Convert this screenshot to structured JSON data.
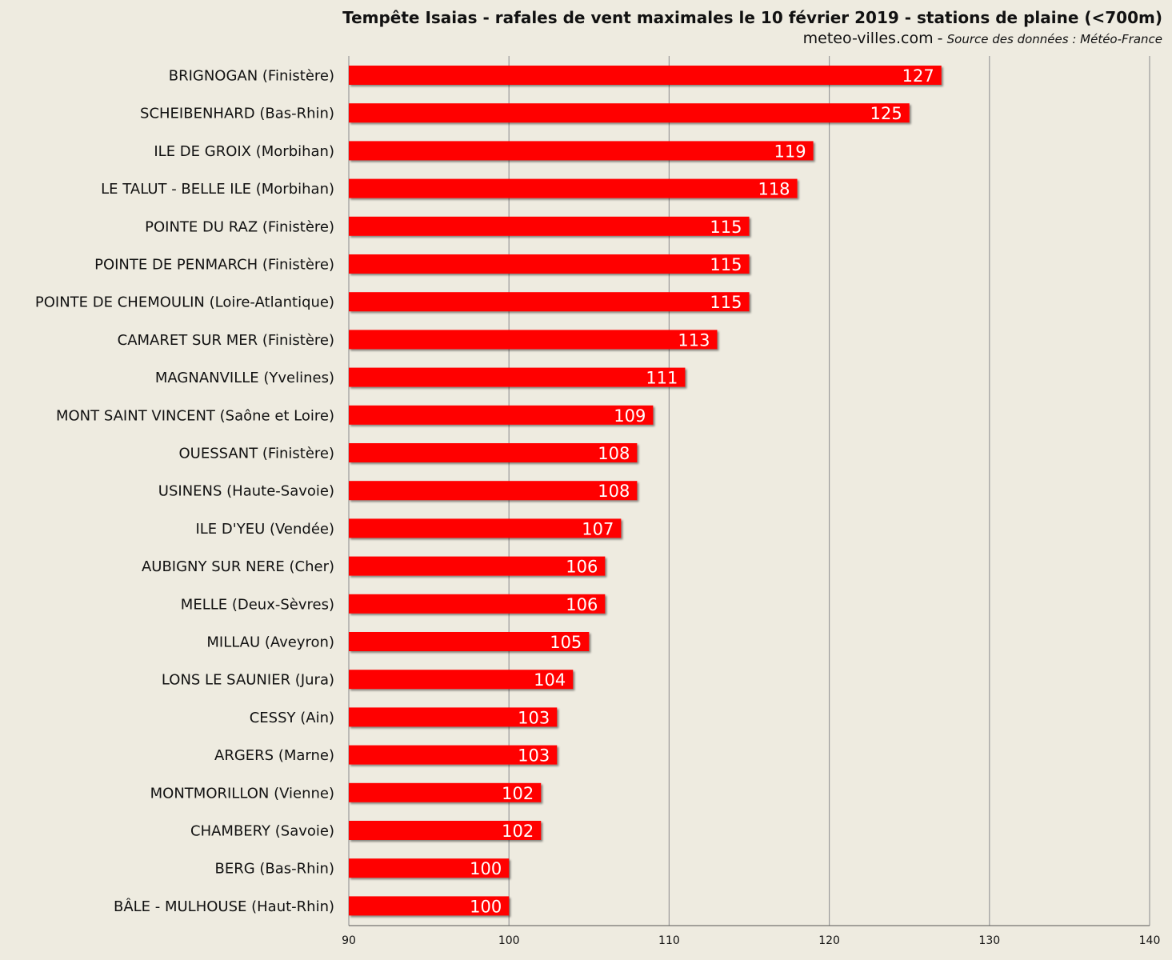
{
  "header": {
    "title": "Tempête Isaias - rafales de vent maximales le 10 février 2019 - stations de plaine (<700m)",
    "site": "meteo-villes.com",
    "separator": "-",
    "source": "Source des données : Météo-France"
  },
  "chart_data": {
    "type": "bar",
    "orientation": "horizontal",
    "title": "Tempête Isaias - rafales de vent maximales le 10 février 2019 - stations de plaine (<700m)",
    "categories": [
      "BRIGNOGAN (Finistère)",
      "SCHEIBENHARD (Bas-Rhin)",
      "ILE DE GROIX (Morbihan)",
      "LE TALUT - BELLE ILE (Morbihan)",
      "POINTE DU RAZ (Finistère)",
      "POINTE DE PENMARCH (Finistère)",
      "POINTE DE CHEMOULIN (Loire-Atlantique)",
      "CAMARET SUR MER (Finistère)",
      "MAGNANVILLE (Yvelines)",
      "MONT SAINT VINCENT (Saône et Loire)",
      "OUESSANT (Finistère)",
      "USINENS (Haute-Savoie)",
      "ILE D'YEU (Vendée)",
      "AUBIGNY SUR NERE (Cher)",
      "MELLE (Deux-Sèvres)",
      "MILLAU (Aveyron)",
      "LONS LE SAUNIER (Jura)",
      "CESSY (Ain)",
      "ARGERS (Marne)",
      "MONTMORILLON (Vienne)",
      "CHAMBERY (Savoie)",
      "BERG (Bas-Rhin)",
      "BÂLE - MULHOUSE (Haut-Rhin)"
    ],
    "values": [
      127,
      125,
      119,
      118,
      115,
      115,
      115,
      113,
      111,
      109,
      108,
      108,
      107,
      106,
      106,
      105,
      104,
      103,
      103,
      102,
      102,
      100,
      100
    ],
    "xlim": [
      90,
      140
    ],
    "xticks": [
      "90",
      "100",
      "110",
      "120",
      "130",
      "140"
    ],
    "grid": "vertical",
    "bar_color": "#ff0000",
    "background_color": "#eeebe0",
    "xlabel": "",
    "ylabel": ""
  }
}
